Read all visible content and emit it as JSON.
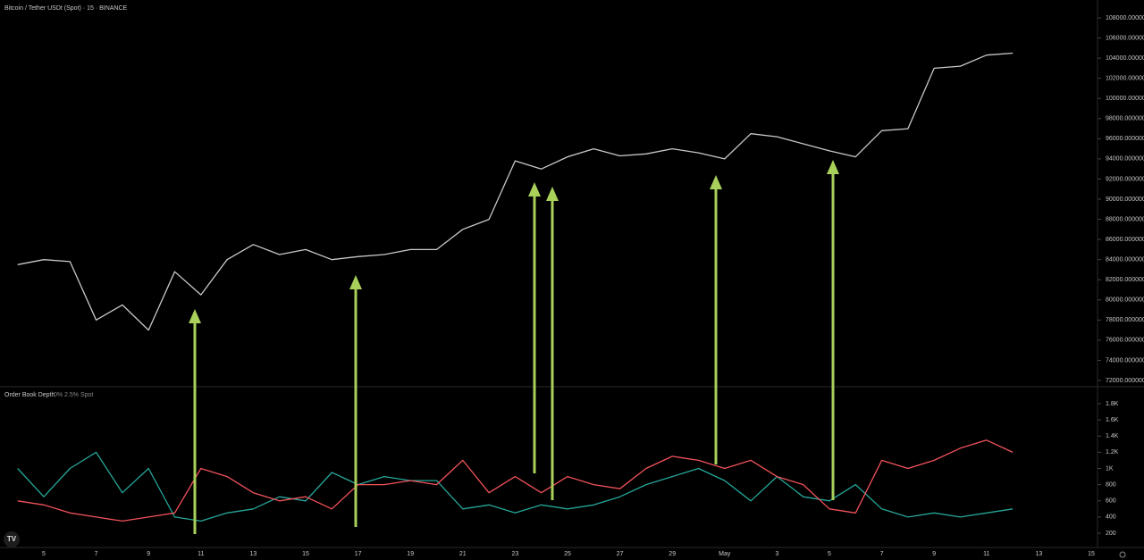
{
  "chart_data": [
    {
      "type": "line",
      "title": "Bitcoin / Tether USDt (Spot) · 15 · BINANCE",
      "series": [
        {
          "color": "#c8c8c8",
          "values": [
            83500,
            84000,
            83800,
            78000,
            79500,
            77000,
            82800,
            80500,
            84000,
            85500,
            84500,
            85000,
            84000,
            84300,
            84500,
            85000,
            85000,
            87000,
            88000,
            93800,
            93000,
            94200,
            95000,
            94300,
            94500,
            95000,
            94600,
            94000,
            96500,
            96200,
            95500,
            94800,
            94200,
            96800,
            97000,
            103000,
            103200,
            104300,
            104500,
            null,
            null,
            null
          ]
        }
      ],
      "ylim": [
        72000,
        108000
      ],
      "yticks": [
        {
          "value": 108000,
          "label": "108000.000000"
        },
        {
          "value": 106000,
          "label": "106000.000000"
        },
        {
          "value": 104000,
          "label": "104000.000000"
        },
        {
          "value": 102000,
          "label": "102000.000000"
        },
        {
          "value": 100000,
          "label": "100000.000000"
        },
        {
          "value": 98000,
          "label": "98000.000000"
        },
        {
          "value": 96000,
          "label": "96000.000000"
        },
        {
          "value": 94000,
          "label": "94000.000000"
        },
        {
          "value": 92000,
          "label": "92000.000000"
        },
        {
          "value": 90000,
          "label": "90000.000000"
        },
        {
          "value": 88000,
          "label": "88000.000000"
        },
        {
          "value": 86000,
          "label": "86000.000000"
        },
        {
          "value": 84000,
          "label": "84000.000000"
        },
        {
          "value": 82000,
          "label": "82000.000000"
        },
        {
          "value": 80000,
          "label": "80000.000000"
        },
        {
          "value": 78000,
          "label": "78000.000000"
        },
        {
          "value": 76000,
          "label": "76000.000000"
        },
        {
          "value": 74000,
          "label": "74000.000000"
        },
        {
          "value": 72000,
          "label": "72000.000000"
        }
      ],
      "grid": false
    },
    {
      "type": "line",
      "title": "Order Book Depth",
      "subtitle": "0% 2.5% Spot",
      "categories": [
        null,
        "5",
        null,
        "7",
        null,
        "9",
        null,
        "11",
        null,
        "13",
        null,
        "15",
        null,
        "17",
        null,
        "19",
        null,
        "21",
        null,
        "23",
        null,
        "25",
        null,
        "27",
        null,
        "29",
        null,
        "May",
        null,
        "3",
        null,
        "5",
        null,
        "7",
        null,
        "9",
        null,
        "11",
        null,
        "13",
        null,
        "15"
      ],
      "series": [
        {
          "color": "#26a69a",
          "values": [
            1000,
            650,
            1000,
            1200,
            700,
            1000,
            400,
            350,
            450,
            500,
            650,
            600,
            950,
            800,
            900,
            850,
            850,
            500,
            550,
            450,
            550,
            500,
            550,
            650,
            800,
            900,
            1000,
            850,
            600,
            900,
            650,
            600,
            800,
            500,
            400,
            450,
            400,
            450,
            500,
            null,
            null,
            null
          ]
        },
        {
          "color": "#f0525a",
          "values": [
            600,
            550,
            450,
            400,
            350,
            400,
            450,
            1000,
            900,
            700,
            600,
            650,
            500,
            800,
            800,
            850,
            800,
            1100,
            700,
            900,
            700,
            900,
            800,
            750,
            1000,
            1150,
            1100,
            1000,
            1100,
            900,
            800,
            500,
            450,
            1100,
            1000,
            1100,
            1250,
            1350,
            1200,
            null,
            null,
            null
          ]
        }
      ],
      "ylim": [
        200,
        1800
      ],
      "yticks": [
        {
          "value": 1800,
          "label": "1.8K"
        },
        {
          "value": 1600,
          "label": "1.6K"
        },
        {
          "value": 1400,
          "label": "1.4K"
        },
        {
          "value": 1200,
          "label": "1.2K"
        },
        {
          "value": 1000,
          "label": "1K"
        },
        800,
        600,
        400,
        200
      ],
      "grid": false
    }
  ]
}
